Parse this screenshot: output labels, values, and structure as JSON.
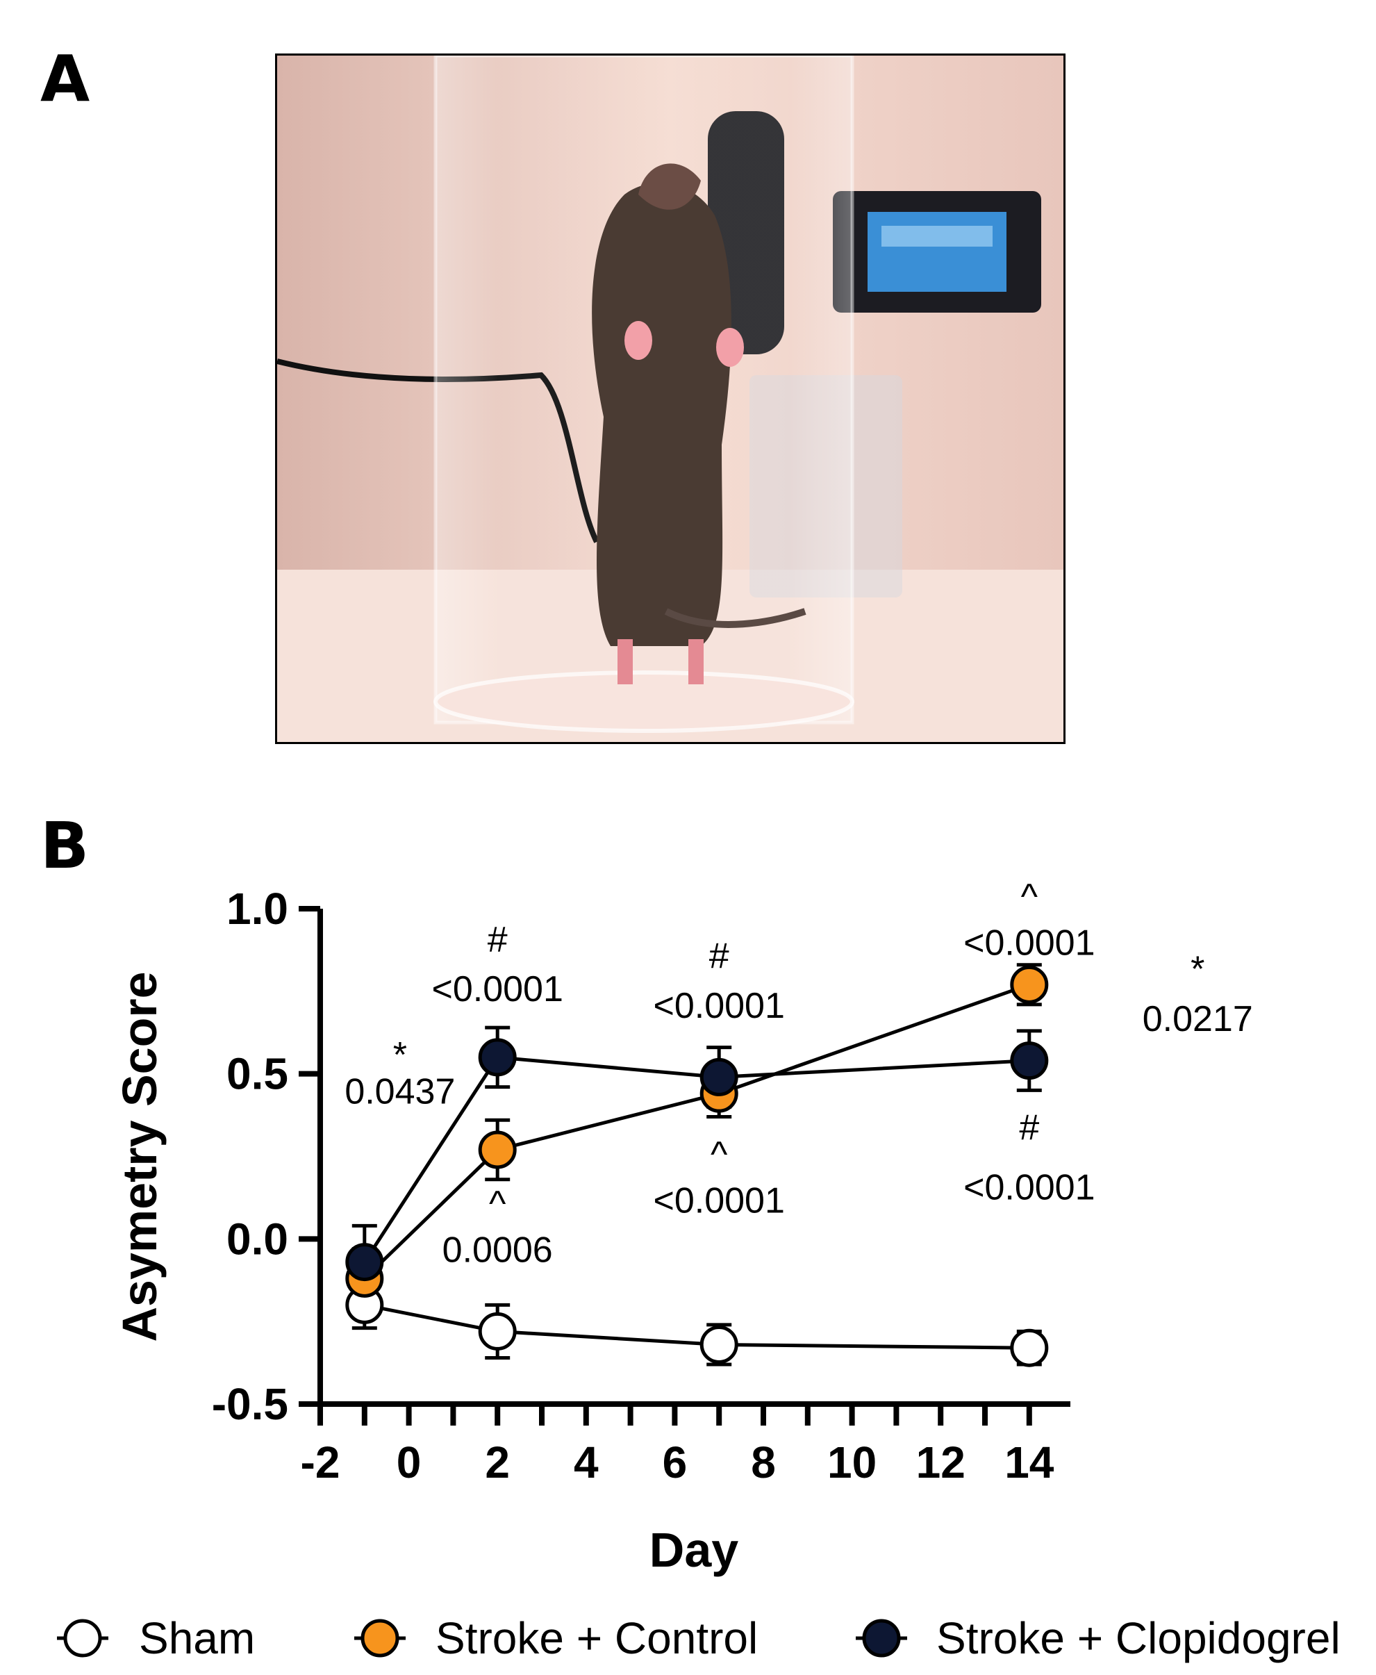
{
  "panels": {
    "a": "A",
    "b": "B"
  },
  "photo": {
    "scene": "mouse-in-cylinder-photo",
    "colors": {
      "background": "#f3d6cc",
      "bench": "#f6e2da",
      "mouse": "#4a3b33",
      "paw": "#f2a0a8",
      "camera": "#1c1c22",
      "screen": "#3a8fd6"
    }
  },
  "chart_data": {
    "type": "line",
    "xlabel": "Day",
    "ylabel": "Asymetry Score",
    "xlim": [
      -2,
      15
    ],
    "ylim": [
      -0.5,
      1.0
    ],
    "xticks": [
      "-2",
      "0",
      "2",
      "4",
      "6",
      "8",
      "10",
      "12",
      "14"
    ],
    "yticks": [
      "-0.5",
      "0.0",
      "0.5",
      "1.0"
    ],
    "grid": false,
    "legend_position": "bottom",
    "series": [
      {
        "name": "Sham",
        "color": "#ffffff",
        "x": [
          -1,
          2,
          7,
          14
        ],
        "y": [
          -0.2,
          -0.28,
          -0.32,
          -0.33
        ],
        "err": [
          0.07,
          0.08,
          0.06,
          0.05
        ]
      },
      {
        "name": "Stroke + Control",
        "color": "#f7941d",
        "x": [
          -1,
          2,
          7,
          14
        ],
        "y": [
          -0.12,
          0.27,
          0.44,
          0.77
        ],
        "err": [
          0.09,
          0.09,
          0.07,
          0.06
        ]
      },
      {
        "name": "Stroke + Clopidogrel",
        "color": "#0d1733",
        "x": [
          -1,
          2,
          7,
          14
        ],
        "y": [
          -0.07,
          0.55,
          0.49,
          0.54
        ],
        "err": [
          0.11,
          0.09,
          0.09,
          0.09
        ]
      }
    ],
    "annotations": [
      {
        "text": "*",
        "x": -0.2,
        "y": 0.52
      },
      {
        "text": "0.0437",
        "x": -0.2,
        "y": 0.41
      },
      {
        "text": "#",
        "x": 2,
        "y": 0.87
      },
      {
        "text": "<0.0001",
        "x": 2,
        "y": 0.72
      },
      {
        "text": "^",
        "x": 2,
        "y": 0.07
      },
      {
        "text": "0.0006",
        "x": 2,
        "y": -0.07
      },
      {
        "text": "#",
        "x": 7,
        "y": 0.82
      },
      {
        "text": "<0.0001",
        "x": 7,
        "y": 0.67
      },
      {
        "text": "^",
        "x": 7,
        "y": 0.22
      },
      {
        "text": "<0.0001",
        "x": 7,
        "y": 0.08
      },
      {
        "text": "^",
        "x": 14,
        "y": 1.0
      },
      {
        "text": "<0.0001",
        "x": 14,
        "y": 0.86
      },
      {
        "text": "*",
        "x": 17.8,
        "y": 0.78
      },
      {
        "text": "0.0217",
        "x": 17.8,
        "y": 0.63
      },
      {
        "text": "#",
        "x": 14,
        "y": 0.3
      },
      {
        "text": "<0.0001",
        "x": 14,
        "y": 0.12
      }
    ]
  }
}
